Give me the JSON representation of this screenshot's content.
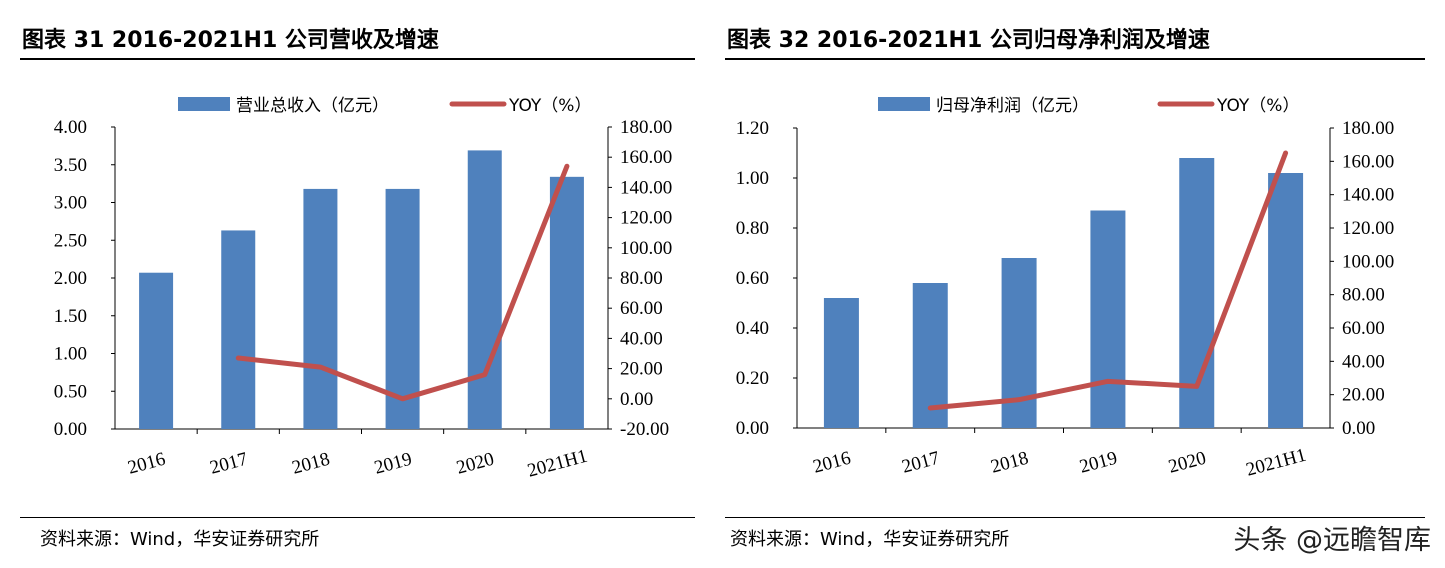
{
  "charts": [
    {
      "title": "图表 31 2016-2021H1 公司营收及增速",
      "source": "资料来源：Wind，华安证券研究所"
    },
    {
      "title": "图表 32 2016-2021H1 公司归母净利润及增速",
      "source": "资料来源：Wind，华安证券研究所"
    }
  ],
  "watermark": "头条 @远瞻智库",
  "colors": {
    "bar": "#4f81bd",
    "line": "#c0504d"
  },
  "chart_data": [
    {
      "type": "bar+line",
      "title": "图表 31 2016-2021H1 公司营收及增速",
      "categories": [
        "2016",
        "2017",
        "2018",
        "2019",
        "2020",
        "2021H1"
      ],
      "series": [
        {
          "name": "营业总收入（亿元）",
          "type": "bar",
          "axis": "left",
          "values": [
            2.07,
            2.63,
            3.18,
            3.18,
            3.69,
            3.34
          ]
        },
        {
          "name": "YOY（%）",
          "type": "line",
          "axis": "right",
          "values": [
            null,
            27,
            21,
            0,
            16,
            154
          ]
        }
      ],
      "ylim_left": [
        0,
        4
      ],
      "yticks_left": [
        "0.00",
        "0.50",
        "1.00",
        "1.50",
        "2.00",
        "2.50",
        "3.00",
        "3.50",
        "4.00"
      ],
      "ylim_right": [
        -20,
        180
      ],
      "yticks_right": [
        "-20.00",
        "0.00",
        "20.00",
        "40.00",
        "60.00",
        "80.00",
        "100.00",
        "120.00",
        "140.00",
        "160.00",
        "180.00"
      ],
      "legend": "top"
    },
    {
      "type": "bar+line",
      "title": "图表 32 2016-2021H1 公司归母净利润及增速",
      "categories": [
        "2016",
        "2017",
        "2018",
        "2019",
        "2020",
        "2021H1"
      ],
      "series": [
        {
          "name": "归母净利润（亿元）",
          "type": "bar",
          "axis": "left",
          "values": [
            0.52,
            0.58,
            0.68,
            0.87,
            1.08,
            1.02
          ]
        },
        {
          "name": "YOY（%）",
          "type": "line",
          "axis": "right",
          "values": [
            null,
            12,
            17,
            28,
            25,
            165
          ]
        }
      ],
      "ylim_left": [
        0,
        1.2
      ],
      "yticks_left": [
        "0.00",
        "0.20",
        "0.40",
        "0.60",
        "0.80",
        "1.00",
        "1.20"
      ],
      "ylim_right": [
        0,
        180
      ],
      "yticks_right": [
        "0.00",
        "20.00",
        "40.00",
        "60.00",
        "80.00",
        "100.00",
        "120.00",
        "140.00",
        "160.00",
        "180.00"
      ],
      "legend": "top"
    }
  ]
}
